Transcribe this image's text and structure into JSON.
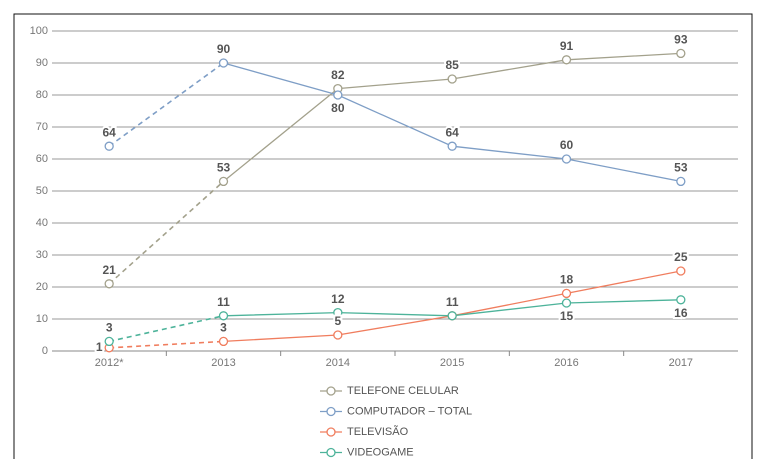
{
  "chart_data": {
    "type": "line",
    "categories": [
      "2012*",
      "2013",
      "2014",
      "2015",
      "2016",
      "2017"
    ],
    "series": [
      {
        "name": "TELEFONE CELULAR",
        "color": "#a3a18c",
        "values": [
          21,
          53,
          82,
          85,
          91,
          93
        ]
      },
      {
        "name": "COMPUTADOR – TOTAL",
        "color": "#7e9ec6",
        "values": [
          64,
          90,
          80,
          64,
          60,
          53
        ]
      },
      {
        "name": "TELEVISÃO",
        "color": "#f07d5e",
        "values": [
          1,
          3,
          5,
          11,
          18,
          25
        ]
      },
      {
        "name": "VIDEOGAME",
        "color": "#4db39a",
        "values": [
          3,
          11,
          12,
          11,
          15,
          16
        ]
      }
    ],
    "ylim": [
      0,
      100
    ],
    "yticks": [
      0,
      10,
      20,
      30,
      40,
      50,
      60,
      70,
      80,
      90,
      100
    ],
    "grid": true,
    "legend": "bottom",
    "first_segment_style": "dashed"
  }
}
